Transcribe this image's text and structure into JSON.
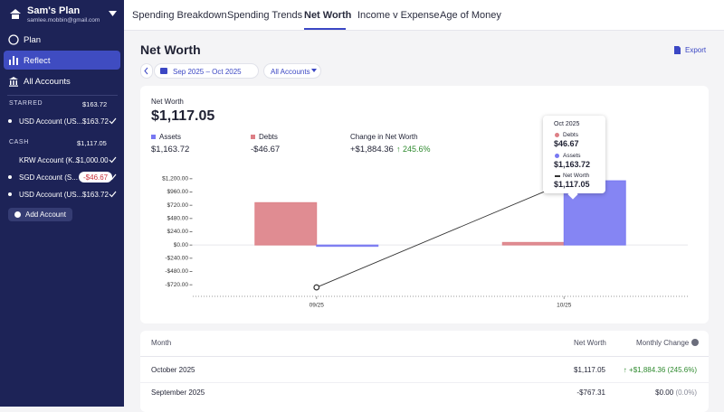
{
  "sidebar": {
    "plan_name": "Sam's Plan",
    "email": "samlee.mobbin@gmail.com",
    "nav": [
      "Plan",
      "Reflect",
      "All Accounts"
    ],
    "starred": {
      "label": "STARRED",
      "total": "$163.72",
      "accounts": [
        {
          "name": "USD Account (US...",
          "balance": "$163.72"
        }
      ]
    },
    "cash": {
      "label": "CASH",
      "total": "$1,117.05",
      "accounts": [
        {
          "name": "KRW Account (K...",
          "balance": "$1,000.00"
        },
        {
          "name": "SGD Account (S...",
          "balance": "-$46.67"
        },
        {
          "name": "USD Account (US...",
          "balance": "$163.72"
        }
      ]
    },
    "add_account": "Add Account"
  },
  "tabs": [
    "Spending Breakdown",
    "Spending Trends",
    "Net Worth",
    "Income v Expense",
    "Age of Money"
  ],
  "header": {
    "title": "Net Worth",
    "export": "Export",
    "date_range": "Sep 2025 – Oct 2025",
    "account_filter": "All Accounts"
  },
  "summary": {
    "net_worth_label": "Net Worth",
    "net_worth": "$1,117.05",
    "assets": "$1,163.72",
    "debts": "-$46.67",
    "change_label": "Change in Net Worth",
    "change": "+$1,884.36",
    "change_pct": "245.6%"
  },
  "chart_data": {
    "type": "bar",
    "categories": [
      "09/25",
      "10/25"
    ],
    "series": [
      {
        "name": "Debts",
        "color": "#dd7f86",
        "values": [
          767.31,
          46.67
        ]
      },
      {
        "name": "Assets",
        "color": "#7878f2",
        "values": [
          0,
          1163.72
        ]
      },
      {
        "name": "Net Worth",
        "type": "line",
        "color": "#333333",
        "values": [
          -767.31,
          1117.05
        ]
      }
    ],
    "ylim": [
      -930,
      1410
    ],
    "yticks": [
      {
        "value": 1200,
        "label": "$1,200.00"
      },
      {
        "value": 960,
        "label": "$960.00"
      },
      {
        "value": 720,
        "label": "$720.00"
      },
      {
        "value": 480,
        "label": "$480.00"
      },
      {
        "value": 240,
        "label": "$240.00"
      },
      {
        "value": 0,
        "label": "$0.00"
      },
      {
        "value": -240,
        "label": "-$240.00"
      },
      {
        "value": -480,
        "label": "-$480.00"
      },
      {
        "value": -720,
        "label": "-$720.00"
      }
    ]
  },
  "tooltip": {
    "title": "Oct 2025",
    "debts": "$46.67",
    "assets": "$1,163.72",
    "net_worth": "$1,117.05"
  },
  "table": {
    "columns": [
      "Month",
      "Net Worth",
      "Monthly Change"
    ],
    "rows": [
      [
        "October 2025",
        "$1,117.05",
        "+$1,884.36",
        "(245.6%)"
      ],
      [
        "September 2025",
        "-$767.31",
        "$0.00",
        "(0.0%)"
      ]
    ]
  }
}
